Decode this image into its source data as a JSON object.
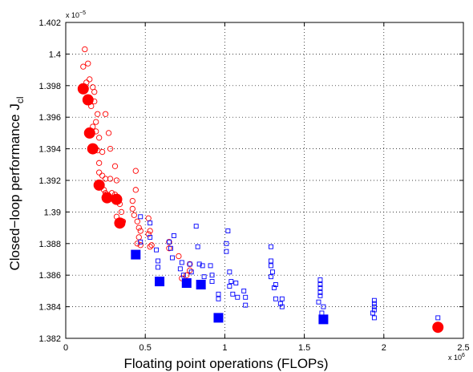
{
  "chart_data": {
    "type": "scatter",
    "xlabel": "Floating point operations (FLOPs)",
    "ylabel": "Closed−loop performance J",
    "ylabel_subscript": "cl",
    "x_exponent_label": "x 10",
    "x_exponent": "6",
    "y_exponent_label": "x 10",
    "y_exponent": "−5",
    "xlim": [
      0,
      2.5
    ],
    "ylim": [
      1.382,
      1.402
    ],
    "xticks": [
      0,
      0.5,
      1,
      1.5,
      2,
      2.5
    ],
    "xtick_labels": [
      "0",
      "0.5",
      "1",
      "1.5",
      "2",
      "2.5"
    ],
    "yticks": [
      1.382,
      1.384,
      1.386,
      1.388,
      1.39,
      1.392,
      1.394,
      1.396,
      1.398,
      1.4,
      1.402
    ],
    "ytick_labels": [
      "1.382",
      "1.384",
      "1.386",
      "1.388",
      "1.39",
      "1.392",
      "1.394",
      "1.396",
      "1.398",
      "1.4",
      "1.402"
    ],
    "grid": true,
    "colors": {
      "red": "#ff0000",
      "blue": "#0000ff"
    },
    "series": [
      {
        "marker": "circle-open",
        "color": "#ff0000",
        "points": [
          [
            0.12,
            1.4003
          ],
          [
            0.11,
            1.3992
          ],
          [
            0.14,
            1.3994
          ],
          [
            0.15,
            1.3984
          ],
          [
            0.13,
            1.3982
          ],
          [
            0.17,
            1.3979
          ],
          [
            0.18,
            1.3976
          ],
          [
            0.18,
            1.397
          ],
          [
            0.16,
            1.3967
          ],
          [
            0.2,
            1.3962
          ],
          [
            0.19,
            1.3957
          ],
          [
            0.17,
            1.3954
          ],
          [
            0.25,
            1.3962
          ],
          [
            0.27,
            1.395
          ],
          [
            0.19,
            1.3951
          ],
          [
            0.21,
            1.3947
          ],
          [
            0.28,
            1.394
          ],
          [
            0.23,
            1.3938
          ],
          [
            0.2,
            1.3939
          ],
          [
            0.31,
            1.3929
          ],
          [
            0.21,
            1.3931
          ],
          [
            0.21,
            1.3925
          ],
          [
            0.23,
            1.3923
          ],
          [
            0.25,
            1.3921
          ],
          [
            0.28,
            1.3921
          ],
          [
            0.32,
            1.392
          ],
          [
            0.24,
            1.3914
          ],
          [
            0.25,
            1.3912
          ],
          [
            0.29,
            1.3912
          ],
          [
            0.31,
            1.3911
          ],
          [
            0.44,
            1.3926
          ],
          [
            0.44,
            1.3914
          ],
          [
            0.34,
            1.3905
          ],
          [
            0.35,
            1.39
          ],
          [
            0.32,
            1.3897
          ],
          [
            0.36,
            1.3894
          ],
          [
            0.42,
            1.3907
          ],
          [
            0.42,
            1.3902
          ],
          [
            0.43,
            1.3898
          ],
          [
            0.45,
            1.3894
          ],
          [
            0.46,
            1.389
          ],
          [
            0.47,
            1.3888
          ],
          [
            0.46,
            1.3884
          ],
          [
            0.47,
            1.3879
          ],
          [
            0.45,
            1.388
          ],
          [
            0.52,
            1.3896
          ],
          [
            0.53,
            1.3888
          ],
          [
            0.52,
            1.3886
          ],
          [
            0.54,
            1.3879
          ],
          [
            0.53,
            1.3878
          ],
          [
            0.65,
            1.3881
          ],
          [
            0.65,
            1.3877
          ],
          [
            0.71,
            1.3872
          ],
          [
            0.78,
            1.3867
          ],
          [
            0.78,
            1.3863
          ],
          [
            0.76,
            1.386
          ],
          [
            0.73,
            1.3858
          ],
          [
            0.75,
            1.3856
          ]
        ]
      },
      {
        "marker": "circle-filled",
        "color": "#ff0000",
        "points": [
          [
            0.11,
            1.3978
          ],
          [
            0.14,
            1.3971
          ],
          [
            0.15,
            1.395
          ],
          [
            0.17,
            1.394
          ],
          [
            0.21,
            1.3917
          ],
          [
            0.26,
            1.3909
          ],
          [
            0.32,
            1.3908
          ],
          [
            0.34,
            1.3893
          ],
          [
            2.34,
            1.3827
          ]
        ]
      },
      {
        "marker": "square-open",
        "color": "#0000ff",
        "points": [
          [
            0.47,
            1.3897
          ],
          [
            0.47,
            1.3881
          ],
          [
            0.53,
            1.3893
          ],
          [
            0.53,
            1.3884
          ],
          [
            0.57,
            1.3876
          ],
          [
            0.58,
            1.3869
          ],
          [
            0.58,
            1.3865
          ],
          [
            0.65,
            1.3881
          ],
          [
            0.66,
            1.3877
          ],
          [
            0.67,
            1.3871
          ],
          [
            0.68,
            1.3885
          ],
          [
            0.73,
            1.3868
          ],
          [
            0.72,
            1.3864
          ],
          [
            0.74,
            1.386
          ],
          [
            0.78,
            1.3867
          ],
          [
            0.79,
            1.3862
          ],
          [
            0.82,
            1.3891
          ],
          [
            0.83,
            1.3878
          ],
          [
            0.84,
            1.3867
          ],
          [
            0.86,
            1.3866
          ],
          [
            0.87,
            1.3859
          ],
          [
            0.91,
            1.3866
          ],
          [
            0.92,
            1.386
          ],
          [
            0.92,
            1.3856
          ],
          [
            0.96,
            1.3848
          ],
          [
            0.96,
            1.3845
          ],
          [
            1.02,
            1.3888
          ],
          [
            1.01,
            1.388
          ],
          [
            1.01,
            1.3875
          ],
          [
            1.03,
            1.3862
          ],
          [
            1.04,
            1.3856
          ],
          [
            1.03,
            1.3853
          ],
          [
            1.05,
            1.3848
          ],
          [
            1.07,
            1.3855
          ],
          [
            1.08,
            1.3846
          ],
          [
            1.12,
            1.385
          ],
          [
            1.13,
            1.3846
          ],
          [
            1.13,
            1.3841
          ],
          [
            1.29,
            1.3878
          ],
          [
            1.29,
            1.3869
          ],
          [
            1.29,
            1.3866
          ],
          [
            1.3,
            1.3862
          ],
          [
            1.29,
            1.3859
          ],
          [
            1.32,
            1.3854
          ],
          [
            1.31,
            1.3852
          ],
          [
            1.32,
            1.3845
          ],
          [
            1.36,
            1.3845
          ],
          [
            1.35,
            1.3842
          ],
          [
            1.36,
            1.384
          ],
          [
            1.6,
            1.3857
          ],
          [
            1.6,
            1.3854
          ],
          [
            1.6,
            1.3852
          ],
          [
            1.6,
            1.3849
          ],
          [
            1.6,
            1.3847
          ],
          [
            1.59,
            1.3843
          ],
          [
            1.62,
            1.384
          ],
          [
            1.61,
            1.3836
          ],
          [
            1.94,
            1.3844
          ],
          [
            1.94,
            1.3842
          ],
          [
            1.94,
            1.384
          ],
          [
            1.94,
            1.3838
          ],
          [
            1.93,
            1.3836
          ],
          [
            1.94,
            1.3833
          ],
          [
            2.34,
            1.3833
          ]
        ]
      },
      {
        "marker": "square-filled",
        "color": "#0000ff",
        "points": [
          [
            0.44,
            1.3873
          ],
          [
            0.59,
            1.3856
          ],
          [
            0.76,
            1.3855
          ],
          [
            0.85,
            1.3854
          ],
          [
            0.96,
            1.3833
          ],
          [
            1.62,
            1.3832
          ]
        ]
      }
    ]
  }
}
